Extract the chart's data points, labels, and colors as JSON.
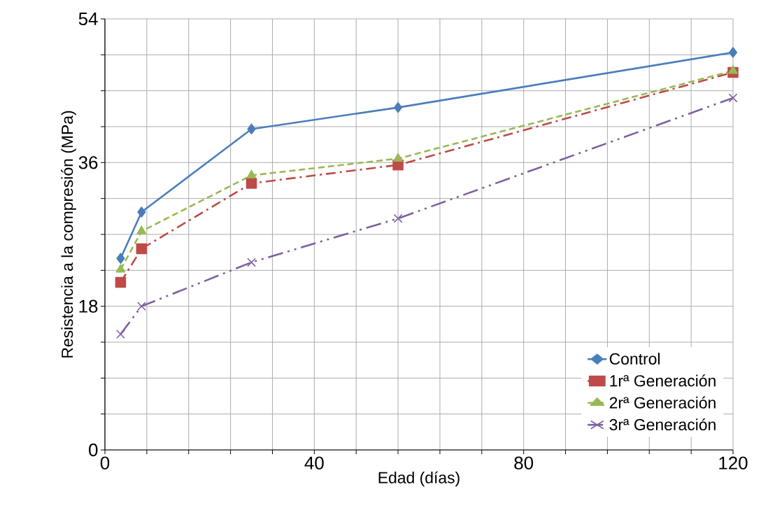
{
  "chart_data": {
    "type": "line",
    "xlabel": "Edad (días)",
    "ylabel": "Resistencia a la compresión (MPa)",
    "x": [
      3,
      7,
      28,
      56,
      120
    ],
    "series": [
      {
        "name": "Control",
        "color": "#4a7ebb",
        "marker": "diamond",
        "line_style": "solid",
        "values": [
          24.0,
          29.8,
          40.2,
          42.9,
          49.8
        ]
      },
      {
        "name": "1rª Generación",
        "color": "#be4b48",
        "marker": "square",
        "line_style": "dashdotted",
        "values": [
          21.0,
          25.2,
          33.4,
          35.7,
          47.3
        ]
      },
      {
        "name": "2rª Generación",
        "color": "#98b954",
        "marker": "triangle",
        "line_style": "dashed",
        "values": [
          22.6,
          27.4,
          34.4,
          36.5,
          47.5
        ]
      },
      {
        "name": "3rª Generación",
        "color": "#7d60a0",
        "marker": "cross",
        "line_style": "dashdotdotted",
        "values": [
          14.5,
          18.0,
          23.5,
          29.0,
          44.1
        ]
      }
    ],
    "xlim": [
      0,
      120
    ],
    "xticks": [
      0,
      {
        "value": 8,
        "label": null
      },
      {
        "value": 16,
        "label": null
      },
      {
        "value": 24,
        "label": null
      },
      {
        "value": 32,
        "label": null
      },
      40,
      {
        "value": 48,
        "label": null
      },
      {
        "value": 56,
        "label": null
      },
      {
        "value": 64,
        "label": null
      },
      {
        "value": 72,
        "label": null
      },
      80,
      {
        "value": 88,
        "label": null
      },
      {
        "value": 96,
        "label": null
      },
      {
        "value": 104,
        "label": null
      },
      {
        "value": 112,
        "label": null
      },
      120
    ],
    "ylim": [
      0,
      54
    ],
    "yticks": [
      0,
      {
        "value": 4.5,
        "label": null
      },
      {
        "value": 9,
        "label": null
      },
      {
        "value": 13.5,
        "label": null
      },
      18,
      {
        "value": 22.5,
        "label": null
      },
      {
        "value": 27,
        "label": null
      },
      {
        "value": 31.5,
        "label": null
      },
      36,
      {
        "value": 40.5,
        "label": null
      },
      {
        "value": 45,
        "label": null
      },
      {
        "value": 49.5,
        "label": null
      },
      54
    ],
    "grid": true,
    "legend": "bottom right"
  }
}
